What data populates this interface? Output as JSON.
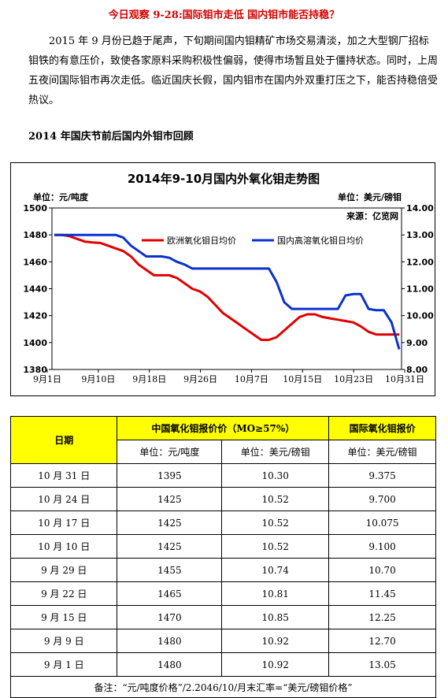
{
  "title": "今日观察 9-28:国际钼市走低  国内钼市能否持稳？",
  "paragraph": "2015 年 9 月份已趋于尾声，下旬期间国内钼精矿市场交易清淡，加之大型钢厂招标钼铁的有意压价，致使各家原料采购积极性偏弱，使得市场暂且处于僵持状态。同时，上周五夜间国际钼市再次走低。临近国庆长假，国内钼市在国内外双重打压之下，能否持稳倍受热议。",
  "section_title": "2014 年国庆节前后国内外钼市回顾",
  "chart_data": {
    "type": "line",
    "title": "2014年9-10月国内外氧化钼走势图",
    "left_unit": "单位：元/吨度",
    "right_unit": "单位：美元/磅钼",
    "source": "来源：亿览网",
    "x_labels": [
      "9月1日",
      "9月10日",
      "9月18日",
      "9月26日",
      "10月7日",
      "10月15日",
      "10月23日",
      "10月31日"
    ],
    "left_axis": {
      "min": 1380,
      "max": 1500,
      "step": 20,
      "ticks": [
        "1380",
        "1400",
        "1420",
        "1440",
        "1460",
        "1480",
        "1500"
      ]
    },
    "right_axis": {
      "min": 8.0,
      "max": 14.0,
      "step": 1,
      "ticks": [
        "8.00",
        "9.00",
        "10.00",
        "11.00",
        "12.00",
        "13.00",
        "14.00"
      ]
    },
    "series": [
      {
        "name": "欧洲氧化钼日均价",
        "color": "#e00000",
        "axis": "right",
        "x": [
          0,
          1,
          2,
          3,
          4,
          5,
          6,
          7,
          8,
          9,
          10,
          11,
          12,
          13,
          14,
          15,
          16,
          17,
          18,
          19,
          20,
          21,
          22,
          23,
          24,
          25,
          26,
          27,
          28,
          29,
          30,
          31,
          32,
          33,
          34,
          35,
          36,
          37,
          38,
          39,
          40,
          41,
          42,
          43,
          44,
          45
        ],
        "values": [
          13.0,
          13.0,
          12.95,
          12.85,
          12.75,
          12.72,
          12.7,
          12.6,
          12.5,
          12.4,
          12.2,
          11.9,
          11.7,
          11.5,
          11.5,
          11.5,
          11.4,
          11.2,
          11.0,
          10.9,
          10.7,
          10.4,
          10.1,
          9.9,
          9.7,
          9.5,
          9.3,
          9.1,
          9.1,
          9.2,
          9.45,
          9.7,
          9.95,
          10.05,
          10.05,
          9.95,
          9.9,
          9.85,
          9.8,
          9.75,
          9.6,
          9.4,
          9.3,
          9.3,
          9.3,
          9.3
        ]
      },
      {
        "name": "国内高溶氧化钼日均价",
        "color": "#0a30d0",
        "axis": "left",
        "x": [
          0,
          1,
          2,
          3,
          4,
          5,
          6,
          7,
          8,
          9,
          10,
          11,
          12,
          13,
          14,
          15,
          16,
          17,
          18,
          19,
          20,
          21,
          22,
          23,
          24,
          25,
          26,
          27,
          28,
          29,
          30,
          31,
          32,
          33,
          34,
          35,
          36,
          37,
          38,
          39,
          40,
          41,
          42,
          43,
          44,
          45
        ],
        "values": [
          1480,
          1480,
          1480,
          1480,
          1480,
          1480,
          1480,
          1480,
          1480,
          1478,
          1472,
          1468,
          1464,
          1464,
          1464,
          1463,
          1460,
          1458,
          1455,
          1455,
          1455,
          1455,
          1455,
          1455,
          1455,
          1455,
          1455,
          1455,
          1455,
          1445,
          1430,
          1425,
          1425,
          1425,
          1425,
          1425,
          1425,
          1425,
          1435,
          1436,
          1436,
          1425,
          1424,
          1424,
          1415,
          1395
        ]
      }
    ]
  },
  "table": {
    "header_date": "日期",
    "header_cn": "中国氧化钼报价价（MO≥57%）",
    "header_intl": "国际氧化钼报价",
    "unit_cn": "单位：元/吨度",
    "unit_usd": "单位：美元/磅钼",
    "unit_intl": "单位：美元/磅钼",
    "rows": [
      {
        "date": "10 月 31 日",
        "cny": "1395",
        "usd": "10.30",
        "intl": "9.375"
      },
      {
        "date": "10 月 24 日",
        "cny": "1425",
        "usd": "10.52",
        "intl": "9.700"
      },
      {
        "date": "10 月 17 日",
        "cny": "1425",
        "usd": "10.52",
        "intl": "10.075"
      },
      {
        "date": "10 月 10 日",
        "cny": "1425",
        "usd": "10.52",
        "intl": "9.100"
      },
      {
        "date": "9 月 29 日",
        "cny": "1455",
        "usd": "10.74",
        "intl": "10.70"
      },
      {
        "date": "9 月 22 日",
        "cny": "1465",
        "usd": "10.81",
        "intl": "11.45"
      },
      {
        "date": "9 月 15 日",
        "cny": "1470",
        "usd": "10.85",
        "intl": "12.25"
      },
      {
        "date": "9 月 9 日",
        "cny": "1480",
        "usd": "10.92",
        "intl": "12.70"
      },
      {
        "date": "9 月 1 日",
        "cny": "1480",
        "usd": "10.92",
        "intl": "13.05"
      }
    ],
    "note": "备注：“元/吨度价格”/2.2046/10/月末汇率=“美元/磅钼价格”"
  }
}
